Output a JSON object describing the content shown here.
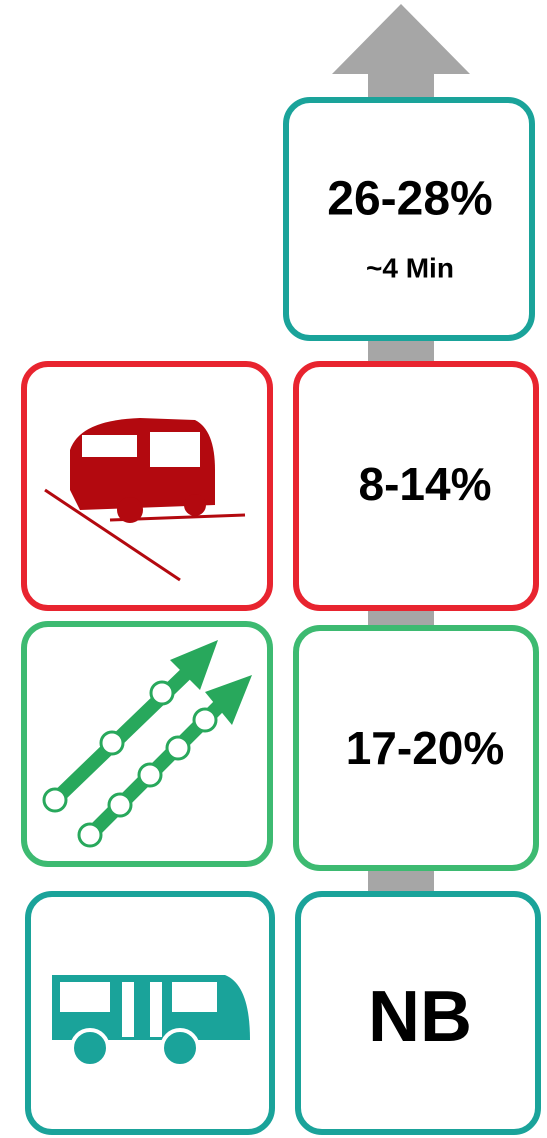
{
  "boxes": [
    {
      "label": "26-28%",
      "sublabel": "~4 Min"
    },
    {
      "label": "8-14%"
    },
    {
      "label": "17-20%"
    },
    {
      "label": "NB"
    }
  ]
}
